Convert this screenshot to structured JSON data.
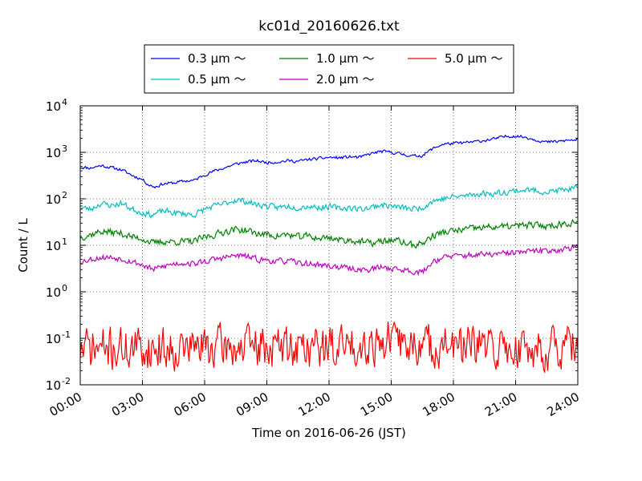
{
  "chart_data": {
    "type": "line",
    "title": "kc01d_20160626.txt",
    "xlabel": "Time on 2016-06-26 (JST)",
    "ylabel": "Count / L",
    "xlim": [
      0,
      24
    ],
    "ylim": [
      0.01,
      10000
    ],
    "yscale": "log",
    "grid": true,
    "legend_position": "top-center",
    "x_ticks": [
      {
        "x": 0,
        "label": "00:00"
      },
      {
        "x": 3,
        "label": "03:00"
      },
      {
        "x": 6,
        "label": "06:00"
      },
      {
        "x": 9,
        "label": "09:00"
      },
      {
        "x": 12,
        "label": "12:00"
      },
      {
        "x": 15,
        "label": "15:00"
      },
      {
        "x": 18,
        "label": "18:00"
      },
      {
        "x": 21,
        "label": "21:00"
      },
      {
        "x": 24,
        "label": "24:00"
      }
    ],
    "y_ticks": [
      {
        "y": 0.01,
        "base": "10",
        "exp": "-2"
      },
      {
        "y": 0.1,
        "base": "10",
        "exp": "-1"
      },
      {
        "y": 1,
        "base": "10",
        "exp": "0"
      },
      {
        "y": 10,
        "base": "10",
        "exp": "1"
      },
      {
        "y": 100,
        "base": "10",
        "exp": "2"
      },
      {
        "y": 1000,
        "base": "10",
        "exp": "3"
      },
      {
        "y": 10000,
        "base": "10",
        "exp": "4"
      }
    ],
    "series": [
      {
        "name": "0.3 μm ～",
        "color": "#0000ff",
        "noise": 0.03,
        "seed": 11,
        "points": [
          [
            0,
            480
          ],
          [
            0.5,
            460
          ],
          [
            1,
            520
          ],
          [
            1.5,
            470
          ],
          [
            2,
            420
          ],
          [
            2.5,
            320
          ],
          [
            3,
            260
          ],
          [
            3.3,
            200
          ],
          [
            3.6,
            180
          ],
          [
            4,
            210
          ],
          [
            4.5,
            220
          ],
          [
            5,
            240
          ],
          [
            5.5,
            250
          ],
          [
            6,
            330
          ],
          [
            6.5,
            400
          ],
          [
            7,
            470
          ],
          [
            7.5,
            560
          ],
          [
            8,
            620
          ],
          [
            8.5,
            660
          ],
          [
            9,
            600
          ],
          [
            9.5,
            620
          ],
          [
            10,
            660
          ],
          [
            10.5,
            640
          ],
          [
            11,
            700
          ],
          [
            11.5,
            730
          ],
          [
            12,
            780
          ],
          [
            12.5,
            760
          ],
          [
            13,
            800
          ],
          [
            13.5,
            780
          ],
          [
            14,
            930
          ],
          [
            14.5,
            1050
          ],
          [
            15,
            1000
          ],
          [
            15.5,
            920
          ],
          [
            16,
            830
          ],
          [
            16.5,
            850
          ],
          [
            17,
            1200
          ],
          [
            17.5,
            1500
          ],
          [
            18,
            1550
          ],
          [
            18.5,
            1600
          ],
          [
            19,
            1680
          ],
          [
            19.5,
            1800
          ],
          [
            20,
            1950
          ],
          [
            20.5,
            2200
          ],
          [
            21,
            2250
          ],
          [
            21.5,
            2100
          ],
          [
            22,
            1850
          ],
          [
            22.5,
            1650
          ],
          [
            23,
            1700
          ],
          [
            23.5,
            1800
          ],
          [
            24,
            1850
          ]
        ]
      },
      {
        "name": "0.5 μm ～",
        "color": "#00bfbf",
        "noise": 0.06,
        "seed": 23,
        "points": [
          [
            0,
            65
          ],
          [
            0.5,
            60
          ],
          [
            1,
            80
          ],
          [
            1.5,
            72
          ],
          [
            2,
            80
          ],
          [
            2.5,
            60
          ],
          [
            3,
            50
          ],
          [
            3.5,
            45
          ],
          [
            4,
            55
          ],
          [
            4.5,
            50
          ],
          [
            5,
            48
          ],
          [
            5.5,
            45
          ],
          [
            6,
            60
          ],
          [
            6.5,
            70
          ],
          [
            7,
            80
          ],
          [
            7.5,
            95
          ],
          [
            8,
            88
          ],
          [
            8.5,
            75
          ],
          [
            9,
            70
          ],
          [
            9.5,
            65
          ],
          [
            10,
            70
          ],
          [
            10.5,
            65
          ],
          [
            11,
            70
          ],
          [
            11.5,
            65
          ],
          [
            12,
            68
          ],
          [
            12.5,
            62
          ],
          [
            13,
            65
          ],
          [
            13.5,
            60
          ],
          [
            14,
            65
          ],
          [
            14.5,
            75
          ],
          [
            15,
            70
          ],
          [
            15.5,
            65
          ],
          [
            16,
            60
          ],
          [
            16.5,
            65
          ],
          [
            17,
            90
          ],
          [
            17.5,
            100
          ],
          [
            18,
            110
          ],
          [
            18.5,
            115
          ],
          [
            19,
            125
          ],
          [
            19.5,
            130
          ],
          [
            20,
            130
          ],
          [
            20.5,
            140
          ],
          [
            21,
            150
          ],
          [
            21.5,
            155
          ],
          [
            22,
            150
          ],
          [
            22.5,
            140
          ],
          [
            23,
            150
          ],
          [
            23.5,
            160
          ],
          [
            24,
            170
          ]
        ]
      },
      {
        "name": "1.0 μm ～",
        "color": "#008000",
        "noise": 0.07,
        "seed": 37,
        "points": [
          [
            0,
            15
          ],
          [
            0.5,
            17
          ],
          [
            1,
            20
          ],
          [
            1.5,
            19
          ],
          [
            2,
            18
          ],
          [
            2.5,
            15
          ],
          [
            3,
            14
          ],
          [
            3.5,
            11
          ],
          [
            4,
            12
          ],
          [
            4.5,
            12
          ],
          [
            5,
            12
          ],
          [
            5.5,
            12
          ],
          [
            6,
            15
          ],
          [
            6.5,
            17
          ],
          [
            7,
            20
          ],
          [
            7.5,
            22
          ],
          [
            8,
            21
          ],
          [
            8.5,
            18
          ],
          [
            9,
            17
          ],
          [
            9.5,
            16
          ],
          [
            10,
            17
          ],
          [
            10.5,
            15
          ],
          [
            11,
            16
          ],
          [
            11.5,
            14
          ],
          [
            12,
            15
          ],
          [
            12.5,
            13
          ],
          [
            13,
            13
          ],
          [
            13.5,
            12
          ],
          [
            14,
            11
          ],
          [
            14.5,
            12
          ],
          [
            15,
            13
          ],
          [
            15.5,
            12
          ],
          [
            16,
            10
          ],
          [
            16.5,
            11
          ],
          [
            17,
            16
          ],
          [
            17.5,
            19
          ],
          [
            18,
            20
          ],
          [
            18.5,
            22
          ],
          [
            19,
            23
          ],
          [
            19.5,
            24
          ],
          [
            20,
            25
          ],
          [
            20.5,
            25
          ],
          [
            21,
            26
          ],
          [
            21.5,
            27
          ],
          [
            22,
            27
          ],
          [
            22.5,
            26
          ],
          [
            23,
            28
          ],
          [
            23.5,
            30
          ],
          [
            24,
            33
          ]
        ]
      },
      {
        "name": "2.0 μm ～",
        "color": "#bf00bf",
        "noise": 0.06,
        "seed": 53,
        "points": [
          [
            0,
            4.5
          ],
          [
            0.5,
            5
          ],
          [
            1,
            5.5
          ],
          [
            1.5,
            5.5
          ],
          [
            2,
            5.2
          ],
          [
            2.5,
            4.5
          ],
          [
            3,
            3.8
          ],
          [
            3.5,
            3
          ],
          [
            4,
            3.5
          ],
          [
            4.5,
            4
          ],
          [
            5,
            4.2
          ],
          [
            5.5,
            4
          ],
          [
            6,
            4.5
          ],
          [
            6.5,
            5
          ],
          [
            7,
            5.5
          ],
          [
            7.5,
            6
          ],
          [
            8,
            5.8
          ],
          [
            8.5,
            5
          ],
          [
            9,
            4.8
          ],
          [
            9.5,
            4.5
          ],
          [
            10,
            4.6
          ],
          [
            10.5,
            4.2
          ],
          [
            11,
            4
          ],
          [
            11.5,
            3.8
          ],
          [
            12,
            3.6
          ],
          [
            12.5,
            3.4
          ],
          [
            13,
            3.2
          ],
          [
            13.5,
            3
          ],
          [
            14,
            3
          ],
          [
            14.5,
            3.4
          ],
          [
            15,
            3.2
          ],
          [
            15.5,
            3
          ],
          [
            16,
            2.8
          ],
          [
            16.5,
            2.6
          ],
          [
            17,
            4.5
          ],
          [
            17.5,
            5.5
          ],
          [
            18,
            5.8
          ],
          [
            18.5,
            6
          ],
          [
            19,
            6.2
          ],
          [
            19.5,
            6.3
          ],
          [
            20,
            6.4
          ],
          [
            20.5,
            6.6
          ],
          [
            21,
            7
          ],
          [
            21.5,
            7.2
          ],
          [
            22,
            7.5
          ],
          [
            22.5,
            7.8
          ],
          [
            23,
            8
          ],
          [
            23.5,
            8.5
          ],
          [
            24,
            9
          ]
        ]
      },
      {
        "name": "5.0 μm ～",
        "color": "#ff0000",
        "noise": 0.42,
        "seed": 71,
        "points": [
          [
            0,
            0.06
          ],
          [
            3,
            0.06
          ],
          [
            6,
            0.065
          ],
          [
            9,
            0.065
          ],
          [
            12,
            0.065
          ],
          [
            14,
            0.08
          ],
          [
            15,
            0.09
          ],
          [
            16,
            0.07
          ],
          [
            18,
            0.065
          ],
          [
            21,
            0.06
          ],
          [
            24,
            0.06
          ]
        ]
      }
    ]
  }
}
